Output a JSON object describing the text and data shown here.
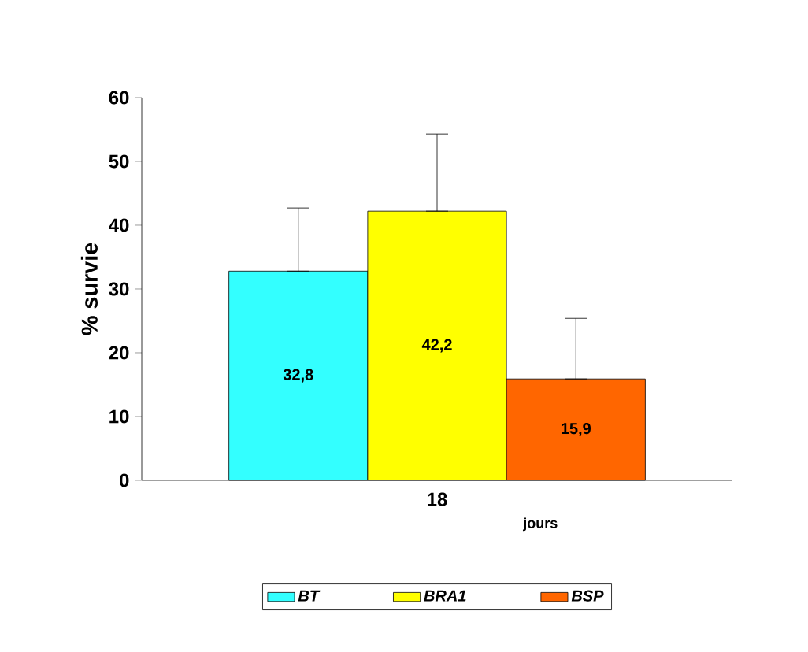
{
  "chart_data": {
    "type": "bar",
    "categories": [
      "18"
    ],
    "xlabel": "jours",
    "ylabel": "% survie",
    "ylim": [
      0,
      60
    ],
    "yticks": [
      0,
      10,
      20,
      30,
      40,
      50,
      60
    ],
    "grid": false,
    "legend": "bottom",
    "series": [
      {
        "name": "BT",
        "color": "#33ffff",
        "values": [
          32.8
        ],
        "errors": [
          [
            32.8,
            42.7
          ]
        ],
        "value_labels": [
          "32,8"
        ]
      },
      {
        "name": "BRA1",
        "color": "#ffff00",
        "values": [
          42.2
        ],
        "errors": [
          [
            42.2,
            54.3
          ]
        ],
        "value_labels": [
          "42,2"
        ]
      },
      {
        "name": "BSP",
        "color": "#ff6600",
        "values": [
          15.9
        ],
        "errors": [
          [
            15.9,
            25.4
          ]
        ],
        "value_labels": [
          "15,9"
        ]
      }
    ]
  }
}
